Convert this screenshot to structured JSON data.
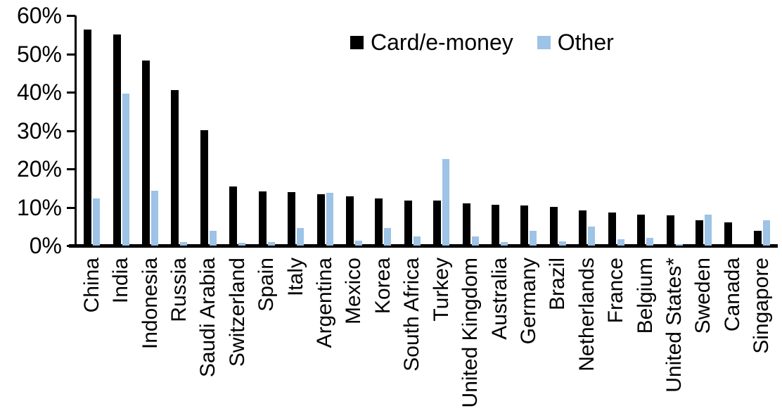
{
  "chart_data": {
    "type": "bar",
    "title": "",
    "xlabel": "",
    "ylabel": "",
    "ylim": [
      0,
      60
    ],
    "ytick_labels": [
      "0%",
      "10%",
      "20%",
      "30%",
      "40%",
      "50%",
      "60%"
    ],
    "ytick_values": [
      0,
      10,
      20,
      30,
      40,
      50,
      60
    ],
    "grid": false,
    "legend_position": "top-center",
    "categories": [
      "China",
      "India",
      "Indonesia",
      "Russia",
      "Saudi Arabia",
      "Switzerland",
      "Spain",
      "Italy",
      "Argentina",
      "Mexico",
      "Korea",
      "South Africa",
      "Turkey",
      "United Kingdom",
      "Australia",
      "Germany",
      "Brazil",
      "Netherlands",
      "France",
      "Belgium",
      "United States*",
      "Sweden",
      "Canada",
      "Singapore"
    ],
    "series": [
      {
        "name": "Card/e-money",
        "color": "#000000",
        "values": [
          56.3,
          55.0,
          48.3,
          40.5,
          30.0,
          15.5,
          14.2,
          14.0,
          13.4,
          12.9,
          12.3,
          11.8,
          11.7,
          11.1,
          10.7,
          10.5,
          10.0,
          9.2,
          8.7,
          8.1,
          7.8,
          6.6,
          6.0,
          3.8
        ]
      },
      {
        "name": "Other",
        "color": "#9DC3E6",
        "values": [
          12.3,
          39.6,
          14.4,
          0.9,
          3.8,
          0.7,
          0.9,
          4.5,
          13.8,
          1.3,
          4.6,
          2.4,
          22.5,
          2.4,
          0.9,
          3.8,
          1.1,
          4.9,
          1.6,
          2.0,
          0.3,
          8.0,
          0.0,
          6.6
        ]
      }
    ]
  }
}
